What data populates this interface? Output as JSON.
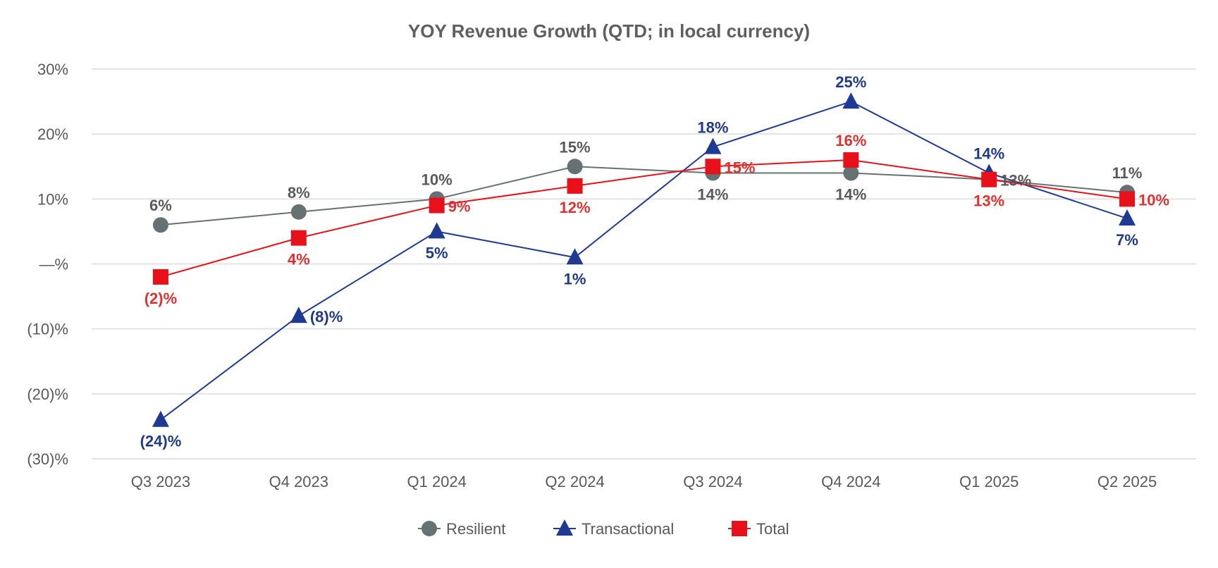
{
  "chart_data": {
    "type": "line",
    "title": "YOY Revenue Growth (QTD; in local currency)",
    "xlabel": "",
    "ylabel": "",
    "categories": [
      "Q3 2023",
      "Q4 2023",
      "Q1 2024",
      "Q2 2024",
      "Q3 2024",
      "Q4 2024",
      "Q1 2025",
      "Q2 2025"
    ],
    "ylim": [
      -30,
      30
    ],
    "yticks": [
      30,
      20,
      10,
      0,
      -10,
      -20,
      -30
    ],
    "ytick_labels": [
      "30%",
      "20%",
      "10%",
      "—%",
      "(10)%",
      "(20)%",
      "(30)%"
    ],
    "grid": true,
    "legend_position": "bottom",
    "series": [
      {
        "name": "Resilient",
        "marker": "circle",
        "color": "#657173",
        "label_color": "#5a5a5a",
        "values": [
          6,
          8,
          10,
          15,
          14,
          14,
          13,
          11
        ],
        "labels": [
          "6%",
          "8%",
          "10%",
          "15%",
          "14%",
          "14%",
          "13%",
          "11%"
        ]
      },
      {
        "name": "Transactional",
        "marker": "triangle",
        "color": "#1f3a93",
        "label_color": "#1f3a8a",
        "values": [
          -24,
          -8,
          5,
          1,
          18,
          25,
          14,
          7
        ],
        "labels": [
          "(24)%",
          "(8)%",
          "5%",
          "1%",
          "18%",
          "25%",
          "14%",
          "7%"
        ]
      },
      {
        "name": "Total",
        "marker": "square",
        "color": "#e8101a",
        "label_color": "#e03131",
        "values": [
          -2,
          4,
          9,
          12,
          15,
          16,
          13,
          10
        ],
        "labels": [
          "(2)%",
          "4%",
          "9%",
          "12%",
          "15%",
          "16%",
          "13%",
          "10%"
        ]
      }
    ]
  }
}
